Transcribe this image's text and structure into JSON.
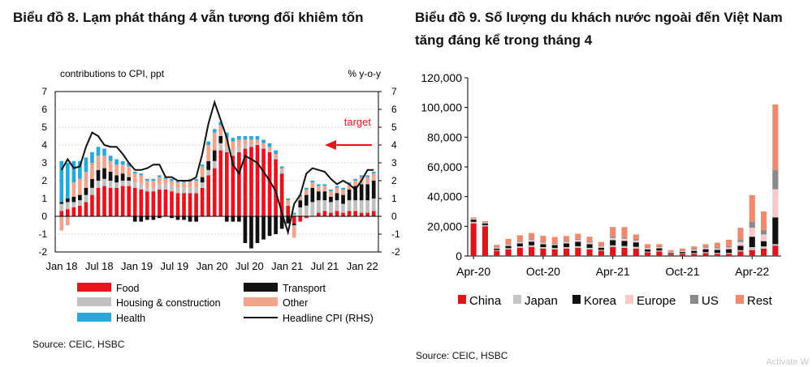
{
  "left": {
    "title": "Biểu đồ 8. Lạm phát tháng 4 vẫn tương đối khiêm tốn",
    "source": "Source: CEIC, HSBC"
  },
  "right": {
    "title": "Biểu đồ 9. Số lượng du khách nước ngoài đến Việt Nam tăng đáng kể trong tháng 4",
    "source": "Source: CEIC, HSBC"
  },
  "watermark": "Activate W",
  "colors": {
    "food": "#e8141b",
    "housing": "#c0c0c0",
    "transport": "#111111",
    "other": "#f4a48c",
    "health": "#29a8dc",
    "line": "#111111",
    "target": "#e8141b",
    "china": "#e0141b",
    "japan": "#c6c6c6",
    "korea": "#111111",
    "europe": "#f9c8c8",
    "us": "#8a8a8a",
    "rest": "#f08a6e"
  },
  "chart_data": [
    {
      "type": "bar",
      "stacked": true,
      "ylabel": "contributions  to CPI, ppt",
      "y2label": "% y-o-y",
      "ylim": [
        -2,
        7
      ],
      "y2lim": [
        -2,
        7
      ],
      "yticks": [
        "-2",
        "-1",
        "0",
        "1",
        "2",
        "3",
        "4",
        "5",
        "6",
        "7"
      ],
      "xticks": [
        "Jan 18",
        "Jul 18",
        "Jan 19",
        "Jul 19",
        "Jan 20",
        "Jul 20",
        "Jan 21",
        "Jul 21",
        "Jan 22"
      ],
      "annotation": "target",
      "target_value": 4,
      "grid": true,
      "legend_position": "bottom",
      "months": 52,
      "series": [
        {
          "name": "Food",
          "values": [
            0.3,
            0.4,
            0.5,
            0.6,
            0.8,
            1.2,
            1.6,
            1.7,
            1.6,
            1.6,
            1.7,
            1.7,
            1.6,
            1.5,
            1.4,
            1.4,
            1.5,
            1.5,
            1.4,
            1.3,
            1.3,
            1.3,
            1.3,
            1.6,
            2.3,
            2.7,
            3.7,
            3.6,
            3.4,
            3.6,
            3.8,
            3.9,
            4.0,
            3.8,
            3.6,
            3.2,
            2.4,
            0.6,
            -0.4,
            -0.3,
            -0.1,
            0.0,
            0.2,
            0.3,
            0.2,
            0.3,
            0.2,
            0.3,
            0.3,
            0.2,
            0.2,
            0.3
          ]
        },
        {
          "name": "Housing & construction",
          "values": [
            0.4,
            0.4,
            0.3,
            0.3,
            0.4,
            0.4,
            0.4,
            0.4,
            0.4,
            0.3,
            0.3,
            0.3,
            0.3,
            0.3,
            0.2,
            0.2,
            0.3,
            0.3,
            0.3,
            0.3,
            0.3,
            0.3,
            0.3,
            0.3,
            0.3,
            0.4,
            0.4,
            0.3,
            0.3,
            0.3,
            0.2,
            0.1,
            0.1,
            0.1,
            0.1,
            0.1,
            0.2,
            0.1,
            0.1,
            0.5,
            0.6,
            0.8,
            0.7,
            0.6,
            0.6,
            0.6,
            0.5,
            0.6,
            0.6,
            0.7,
            0.7,
            0.7
          ]
        },
        {
          "name": "Transport",
          "values": [
            0.1,
            0.2,
            0.3,
            0.3,
            0.4,
            0.5,
            0.6,
            0.6,
            0.5,
            0.4,
            0.4,
            0.2,
            -0.3,
            -0.3,
            -0.2,
            -0.2,
            -0.1,
            0.0,
            -0.1,
            -0.2,
            -0.2,
            -0.3,
            -0.3,
            0.3,
            0.5,
            0.6,
            0.4,
            -0.3,
            -0.3,
            -0.3,
            -1.5,
            -1.8,
            -1.5,
            -1.3,
            -1.1,
            -1.0,
            -0.7,
            -0.4,
            -0.1,
            0.4,
            0.6,
            0.8,
            0.5,
            0.5,
            0.3,
            0.4,
            0.5,
            0.6,
            0.8,
            0.9,
            0.9,
            1.0
          ]
        },
        {
          "name": "Other",
          "values": [
            -0.8,
            -0.5,
            0.8,
            0.9,
            0.9,
            0.9,
            0.8,
            0.7,
            0.6,
            0.6,
            0.5,
            0.6,
            0.5,
            0.5,
            0.4,
            0.4,
            0.4,
            0.3,
            0.3,
            0.3,
            0.3,
            0.4,
            0.4,
            0.6,
            0.9,
            1.0,
            0.6,
            0.5,
            0.5,
            0.4,
            0.3,
            0.3,
            0.2,
            0.2,
            0.2,
            0.2,
            0.1,
            0.2,
            -0.7,
            0.2,
            0.3,
            0.3,
            0.3,
            0.3,
            0.3,
            0.3,
            0.3,
            0.3,
            0.3,
            0.4,
            0.4,
            0.4
          ]
        },
        {
          "name": "Health",
          "values": [
            2.3,
            2.0,
            1.2,
            1.0,
            0.8,
            0.6,
            0.5,
            0.4,
            0.3,
            0.3,
            0.2,
            0.2,
            0.1,
            0.1,
            0.1,
            0.1,
            0.1,
            0.1,
            0.1,
            0.1,
            0.1,
            0.1,
            0.1,
            0.1,
            0.2,
            0.2,
            0.2,
            0.3,
            0.2,
            0.2,
            0.2,
            0.2,
            0.2,
            0.2,
            0.2,
            0.2,
            0.1,
            0.1,
            0.1,
            0.1,
            0.1,
            0.1,
            0.1,
            0.1,
            0.1,
            0.1,
            0.1,
            0.1,
            0.1,
            0.1,
            0.1,
            0.1
          ]
        },
        {
          "name": "Headline CPI (RHS)",
          "type": "line",
          "values": [
            2.6,
            3.2,
            2.7,
            2.8,
            3.9,
            4.7,
            4.5,
            4.0,
            3.9,
            3.9,
            3.5,
            3.0,
            2.6,
            2.6,
            2.7,
            2.9,
            2.9,
            2.2,
            2.2,
            2.0,
            2.0,
            2.0,
            2.2,
            3.5,
            5.2,
            6.4,
            5.4,
            4.4,
            2.9,
            2.4,
            3.4,
            3.2,
            3.0,
            2.5,
            2.0,
            1.4,
            0.2,
            -0.9,
            0.7,
            1.2,
            2.4,
            2.7,
            2.6,
            2.5,
            2.1,
            1.8,
            2.0,
            1.8,
            1.5,
            2.0,
            2.6,
            2.6
          ]
        }
      ]
    },
    {
      "type": "bar",
      "stacked": true,
      "ylim": [
        0,
        120000
      ],
      "yticks": [
        "0",
        "20,000",
        "40,000",
        "60,000",
        "80,000",
        "100,000",
        "120,000"
      ],
      "xticks": [
        "Apr-20",
        "Oct-20",
        "Apr-21",
        "Oct-21",
        "Apr-22"
      ],
      "grid": false,
      "legend_position": "bottom",
      "series": [
        {
          "name": "China",
          "values": [
            22000,
            20000,
            3500,
            4500,
            5500,
            6000,
            5000,
            4500,
            5000,
            5500,
            4500,
            3500,
            6000,
            5500,
            5000,
            2500,
            3000,
            1000,
            1500,
            1500,
            2000,
            1500,
            1500,
            3000,
            4000,
            5000,
            7000
          ]
        },
        {
          "name": "Japan",
          "values": [
            1000,
            800,
            500,
            800,
            1000,
            1200,
            1000,
            900,
            1000,
            1100,
            1000,
            600,
            1200,
            1200,
            1200,
            500,
            700,
            300,
            400,
            500,
            600,
            600,
            600,
            900,
            2000,
            1500,
            1000
          ]
        },
        {
          "name": "Korea",
          "values": [
            1500,
            1200,
            1000,
            1500,
            2000,
            2500,
            2000,
            2000,
            2500,
            3000,
            2500,
            1500,
            3500,
            3500,
            3000,
            1500,
            1500,
            700,
            800,
            1500,
            2000,
            2000,
            2500,
            3000,
            7000,
            3500,
            18000
          ]
        },
        {
          "name": "Europe",
          "values": [
            500,
            500,
            500,
            800,
            1000,
            1000,
            1000,
            800,
            1000,
            1200,
            1000,
            800,
            1500,
            1500,
            1200,
            800,
            800,
            500,
            600,
            800,
            1000,
            1000,
            1200,
            2500,
            6000,
            4500,
            19000
          ]
        },
        {
          "name": "US",
          "values": [
            300,
            300,
            300,
            500,
            700,
            700,
            600,
            600,
            700,
            700,
            600,
            500,
            900,
            900,
            800,
            500,
            500,
            300,
            400,
            600,
            700,
            700,
            800,
            1500,
            4000,
            3000,
            13000
          ]
        },
        {
          "name": "Rest",
          "values": [
            700,
            700,
            1700,
            3400,
            3800,
            4100,
            4000,
            4000,
            3300,
            3500,
            3400,
            2600,
            6400,
            6900,
            3300,
            2200,
            1500,
            1200,
            1300,
            1600,
            1700,
            3200,
            4400,
            8100,
            18000,
            12500,
            44000
          ]
        }
      ]
    }
  ]
}
